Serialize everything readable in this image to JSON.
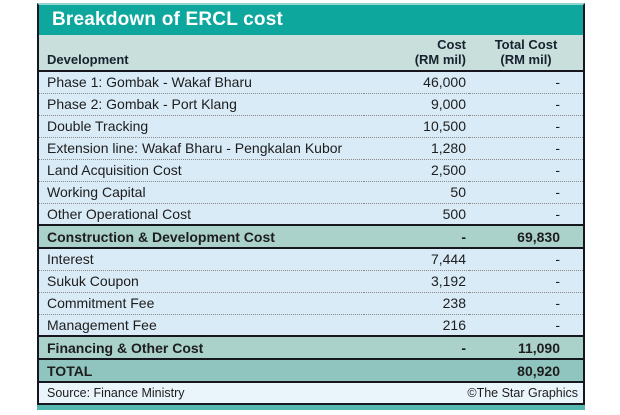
{
  "title_bar": {
    "title": "Breakdown of ERCL cost"
  },
  "table_header": {
    "development": "Development",
    "cost_label": "Cost",
    "cost_sub": "(RM mil)",
    "total_label": "Total Cost",
    "total_sub": "(RM mil)"
  },
  "chart_data": {
    "type": "table",
    "title": "Breakdown of ERCL cost",
    "columns": [
      "Development",
      "Cost (RM mil)",
      "Total Cost (RM mil)"
    ],
    "rows": [
      [
        "Phase 1: Gombak - Wakaf Bharu",
        "46,000",
        "-"
      ],
      [
        "Phase 2: Gombak - Port Klang",
        "9,000",
        "-"
      ],
      [
        "Double Tracking",
        "10,500",
        "-"
      ],
      [
        "Extension line: Wakaf Bharu - Pengkalan Kubor",
        "1,280",
        "-"
      ],
      [
        "Land Acquisition Cost",
        "2,500",
        "-"
      ],
      [
        "Working Capital",
        "50",
        "-"
      ],
      [
        "Other Operational Cost",
        "500",
        "-"
      ],
      [
        "Construction & Development Cost",
        "-",
        "69,830"
      ],
      [
        "Interest",
        "7,444",
        "-"
      ],
      [
        "Sukuk Coupon",
        "3,192",
        "-"
      ],
      [
        "Commitment Fee",
        "238",
        "-"
      ],
      [
        "Management Fee",
        "216",
        "-"
      ],
      [
        "Financing & Other Cost",
        "-",
        "11,090"
      ],
      [
        "TOTAL",
        "",
        "80,920"
      ]
    ],
    "row_types": [
      "data",
      "data",
      "data",
      "data",
      "data",
      "data",
      "data",
      "subtotal",
      "data",
      "data",
      "data",
      "data",
      "subtotal",
      "total"
    ],
    "source": "Source: Finance Ministry",
    "credit": "©The Star Graphics"
  },
  "colors": {
    "title_bar_teal": "#0da79d",
    "header_row": "#c9dfdc",
    "data_row": "#d9ebf7",
    "subtotal_row": "#abd1cb",
    "total_row": "#8fc5be",
    "footer_row": "#e9f4fb",
    "frame_border": "#16161f",
    "bottom_band": "#52b7ae"
  }
}
